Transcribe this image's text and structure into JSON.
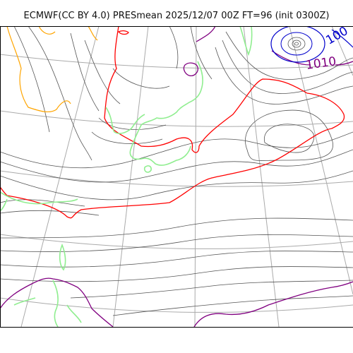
{
  "title": "ECMWF(CC BY 4.0) PRESmean 2025/12/07 00Z FT=96 (init 0300Z)",
  "isobar_labels": {
    "label_1010": "1010",
    "label_100x": "100"
  },
  "colors": {
    "isobar_minor": "#555555",
    "isobar_1010": "#800080",
    "isobar_1020": "#ff0000",
    "isobar_high": "#ffa500",
    "isobar_low": "#0000cc",
    "coastline": "#90ee90",
    "graticule": "#aaaaaa",
    "frame": "#000000"
  }
}
